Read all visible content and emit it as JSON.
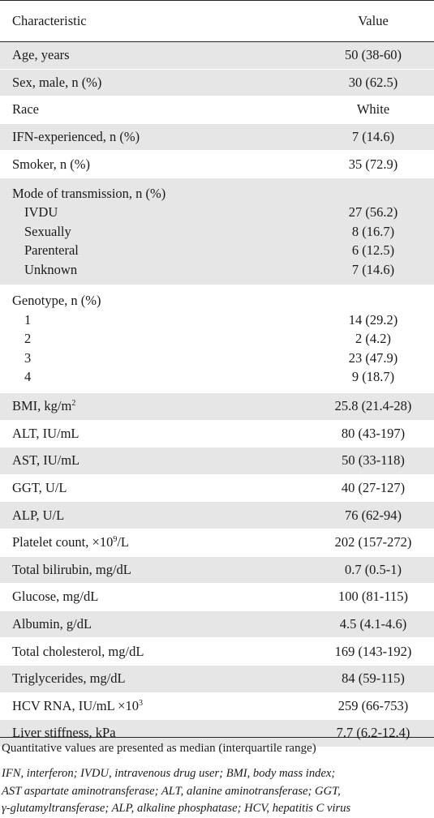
{
  "table": {
    "header": {
      "characteristic": "Characteristic",
      "value": "Value"
    },
    "rows": [
      {
        "label": "Age, years",
        "value": "50 (38-60)"
      },
      {
        "label": "Sex, male, n (%)",
        "value": "30 (62.5)"
      },
      {
        "label": "Race",
        "value": "White"
      },
      {
        "label": "IFN-experienced, n (%)",
        "value": "7 (14.6)"
      },
      {
        "label": "Smoker, n (%)",
        "value": "35 (72.9)"
      }
    ],
    "transmission": {
      "label": "Mode of transmission, n (%)",
      "items": [
        {
          "label": "IVDU",
          "value": "27 (56.2)"
        },
        {
          "label": "Sexually",
          "value": "8 (16.7)"
        },
        {
          "label": "Parenteral",
          "value": "6 (12.5)"
        },
        {
          "label": "Unknown",
          "value": "7 (14.6)"
        }
      ]
    },
    "genotype": {
      "label": "Genotype, n (%)",
      "items": [
        {
          "label": "1",
          "value": "14 (29.2)"
        },
        {
          "label": "2",
          "value": "2 (4.2)"
        },
        {
          "label": "3",
          "value": "23 (47.9)"
        },
        {
          "label": "4",
          "value": "9 (18.7)"
        }
      ]
    },
    "rows2": [
      {
        "label": "BMI, kg/m",
        "sup": "2",
        "value": "25.8 (21.4-28)"
      },
      {
        "label": "ALT, IU/mL",
        "value": "80 (43-197)"
      },
      {
        "label": "AST, IU/mL",
        "value": "50 (33-118)"
      },
      {
        "label": "GGT, U/L",
        "value": "40 (27-127)"
      },
      {
        "label": "ALP, U/L",
        "value": "76 (62-94)"
      },
      {
        "label": "Platelet count, ×10",
        "sup": "9",
        "suffix": "/L",
        "value": "202 (157-272)"
      },
      {
        "label": "Total bilirubin, mg/dL",
        "value": "0.7 (0.5-1)"
      },
      {
        "label": "Glucose, mg/dL",
        "value": "100 (81-115)"
      },
      {
        "label": "Albumin, g/dL",
        "value": "4.5 (4.1-4.6)"
      },
      {
        "label": "Total cholesterol, mg/dL",
        "value": "169 (143-192)"
      },
      {
        "label": "Triglycerides, mg/dL",
        "value": "84 (59-115)"
      },
      {
        "label": "HCV RNA, IU/mL ×10",
        "sup": "3",
        "value": "259 (66-753)"
      },
      {
        "label": "Liver stiffness, kPa",
        "value": "7.7 (6.2-12.4)"
      }
    ]
  },
  "footer": {
    "note": "Quantitative values are presented as median (interquartile range)",
    "abbr_line1": "IFN, interferon; IVDU, intravenous drug user; BMI, body mass index;",
    "abbr_line2": "AST aspartate aminotransferase; ALT, alanine aminotransferase; GGT,",
    "abbr_line3": "γ-glutamyltransferase; ALP, alkaline phosphatase; HCV, hepatitis C virus"
  },
  "colors": {
    "stripe": "#e6e6e6",
    "rule": "#222222"
  }
}
